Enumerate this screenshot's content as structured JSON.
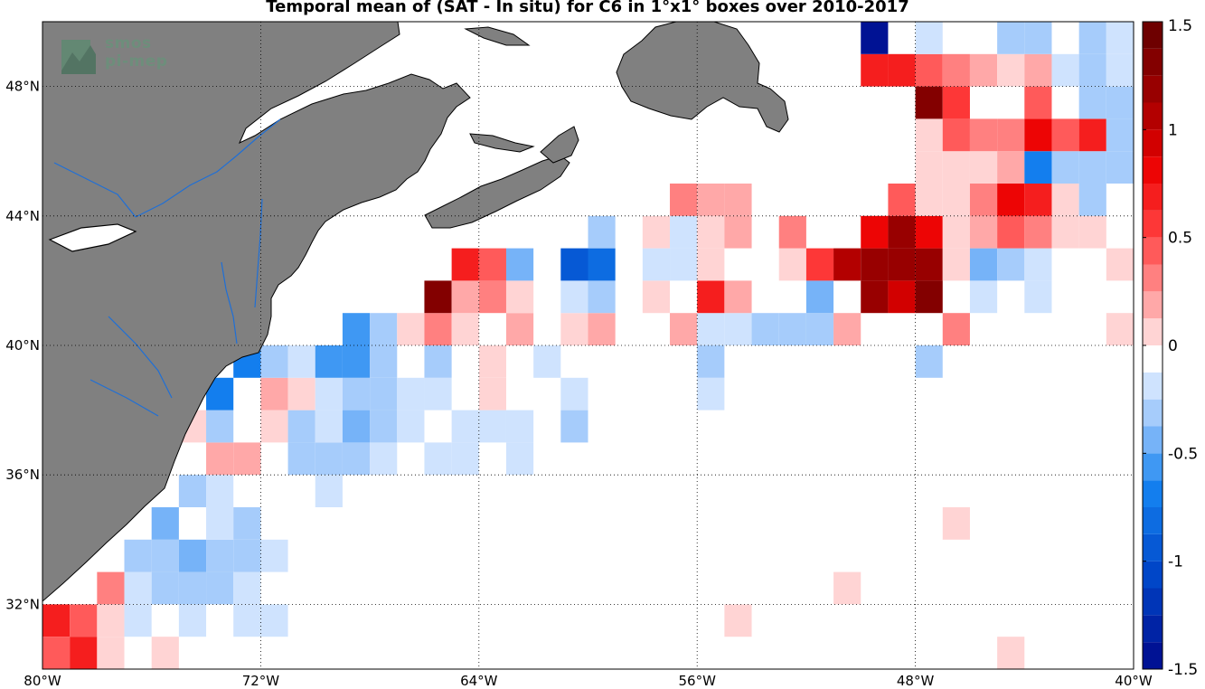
{
  "title": "Temporal mean of (SAT - In situ) for C6 in 1°x1° boxes over 2010-2017",
  "logo": {
    "line1": "smos",
    "line2": "pi-mep"
  },
  "colors": {
    "land": "#808080",
    "coast": "#000000",
    "rivers": "#1f6fd6",
    "grid": "#000000"
  },
  "map_extent": {
    "lon": [
      -80,
      -40
    ],
    "lat": [
      30,
      50
    ]
  },
  "x_ticks": [
    {
      "value": -80,
      "label": "80°W"
    },
    {
      "value": -72,
      "label": "72°W"
    },
    {
      "value": -64,
      "label": "64°W"
    },
    {
      "value": -56,
      "label": "56°W"
    },
    {
      "value": -48,
      "label": "48°W"
    },
    {
      "value": -40,
      "label": "40°W"
    }
  ],
  "y_ticks": [
    {
      "value": 48,
      "label": "48°N"
    },
    {
      "value": 44,
      "label": "44°N"
    },
    {
      "value": 40,
      "label": "40°N"
    },
    {
      "value": 36,
      "label": "36°N"
    },
    {
      "value": 32,
      "label": "32°N"
    }
  ],
  "colorbar": {
    "range": [
      -1.5,
      1.5
    ],
    "ticks": [
      {
        "value": 1.5,
        "label": "1.5"
      },
      {
        "value": 1,
        "label": "1"
      },
      {
        "value": 0.5,
        "label": "0.5"
      },
      {
        "value": 0,
        "label": "0"
      },
      {
        "value": -0.5,
        "label": "-0.5"
      },
      {
        "value": -1,
        "label": "-1"
      },
      {
        "value": -1.5,
        "label": "-1.5"
      }
    ]
  },
  "chart_data": {
    "type": "heatmap",
    "title": "Temporal mean of (SAT - In situ) for C6 in 1°x1° boxes over 2010-2017",
    "xlim": [
      -80,
      -40
    ],
    "ylim": [
      30,
      50
    ],
    "clim": [
      -1.5,
      1.5
    ],
    "cell_size_deg": 1,
    "cells": [
      {
        "lon": -80,
        "lat": 31,
        "v": 0.75
      },
      {
        "lon": -79,
        "lat": 31,
        "v": 0.55
      },
      {
        "lon": -78,
        "lat": 31,
        "v": 0.15
      },
      {
        "lon": -77,
        "lat": 31,
        "v": -0.1
      },
      {
        "lon": -75,
        "lat": 31,
        "v": -0.1
      },
      {
        "lon": -73,
        "lat": 31,
        "v": -0.1
      },
      {
        "lon": -72,
        "lat": 31,
        "v": -0.1
      },
      {
        "lon": -80,
        "lat": 30,
        "v": 0.45
      },
      {
        "lon": -79,
        "lat": 30,
        "v": 0.75
      },
      {
        "lon": -78,
        "lat": 30,
        "v": 0.1
      },
      {
        "lon": -76,
        "lat": 30,
        "v": 0.1
      },
      {
        "lon": -78,
        "lat": 32,
        "v": 0.35
      },
      {
        "lon": -77,
        "lat": 32,
        "v": -0.1
      },
      {
        "lon": -76,
        "lat": 32,
        "v": -0.2
      },
      {
        "lon": -75,
        "lat": 32,
        "v": -0.3
      },
      {
        "lon": -74,
        "lat": 32,
        "v": -0.3
      },
      {
        "lon": -73,
        "lat": 32,
        "v": -0.1
      },
      {
        "lon": -77,
        "lat": 33,
        "v": -0.2
      },
      {
        "lon": -76,
        "lat": 33,
        "v": -0.3
      },
      {
        "lon": -75,
        "lat": 33,
        "v": -0.4
      },
      {
        "lon": -74,
        "lat": 33,
        "v": -0.3
      },
      {
        "lon": -73,
        "lat": 33,
        "v": -0.3
      },
      {
        "lon": -72,
        "lat": 33,
        "v": -0.1
      },
      {
        "lon": -76,
        "lat": 34,
        "v": -0.4
      },
      {
        "lon": -74,
        "lat": 34,
        "v": -0.1
      },
      {
        "lon": -73,
        "lat": 34,
        "v": -0.25
      },
      {
        "lon": -75,
        "lat": 35,
        "v": -0.25
      },
      {
        "lon": -74,
        "lat": 35,
        "v": -0.1
      },
      {
        "lon": -70,
        "lat": 35,
        "v": -0.1
      },
      {
        "lon": -74,
        "lat": 36,
        "v": 0.3
      },
      {
        "lon": -73,
        "lat": 36,
        "v": 0.3
      },
      {
        "lon": -71,
        "lat": 36,
        "v": -0.2
      },
      {
        "lon": -70,
        "lat": 36,
        "v": -0.2
      },
      {
        "lon": -69,
        "lat": 36,
        "v": -0.2
      },
      {
        "lon": -68,
        "lat": 36,
        "v": -0.1
      },
      {
        "lon": -66,
        "lat": 36,
        "v": -0.1
      },
      {
        "lon": -65,
        "lat": 36,
        "v": -0.1
      },
      {
        "lon": -63,
        "lat": 36,
        "v": -0.1
      },
      {
        "lon": -75,
        "lat": 37,
        "v": 0.15
      },
      {
        "lon": -74,
        "lat": 37,
        "v": -0.25
      },
      {
        "lon": -72,
        "lat": 37,
        "v": 0.15
      },
      {
        "lon": -71,
        "lat": 37,
        "v": -0.2
      },
      {
        "lon": -70,
        "lat": 37,
        "v": -0.1
      },
      {
        "lon": -69,
        "lat": 37,
        "v": -0.4
      },
      {
        "lon": -68,
        "lat": 37,
        "v": -0.3
      },
      {
        "lon": -67,
        "lat": 37,
        "v": -0.1
      },
      {
        "lon": -65,
        "lat": 37,
        "v": -0.1
      },
      {
        "lon": -64,
        "lat": 37,
        "v": -0.1
      },
      {
        "lon": -63,
        "lat": 37,
        "v": -0.1
      },
      {
        "lon": -61,
        "lat": 37,
        "v": -0.3
      },
      {
        "lon": -74,
        "lat": 38,
        "v": -0.6
      },
      {
        "lon": -72,
        "lat": 38,
        "v": 0.3
      },
      {
        "lon": -71,
        "lat": 38,
        "v": 0.15
      },
      {
        "lon": -70,
        "lat": 38,
        "v": -0.1
      },
      {
        "lon": -69,
        "lat": 38,
        "v": -0.3
      },
      {
        "lon": -68,
        "lat": 38,
        "v": -0.2
      },
      {
        "lon": -67,
        "lat": 38,
        "v": -0.1
      },
      {
        "lon": -66,
        "lat": 38,
        "v": -0.1
      },
      {
        "lon": -64,
        "lat": 38,
        "v": 0.15
      },
      {
        "lon": -61,
        "lat": 38,
        "v": -0.1
      },
      {
        "lon": -56,
        "lat": 38,
        "v": -0.1
      },
      {
        "lon": -73,
        "lat": 39,
        "v": -0.6
      },
      {
        "lon": -72,
        "lat": 39,
        "v": -0.3
      },
      {
        "lon": -71,
        "lat": 39,
        "v": -0.1
      },
      {
        "lon": -70,
        "lat": 39,
        "v": -0.45
      },
      {
        "lon": -69,
        "lat": 39,
        "v": -0.45
      },
      {
        "lon": -68,
        "lat": 39,
        "v": -0.2
      },
      {
        "lon": -66,
        "lat": 39,
        "v": -0.3
      },
      {
        "lon": -64,
        "lat": 39,
        "v": 0.15
      },
      {
        "lon": -62,
        "lat": 39,
        "v": -0.1
      },
      {
        "lon": -56,
        "lat": 39,
        "v": -0.25
      },
      {
        "lon": -48,
        "lat": 39,
        "v": -0.25
      },
      {
        "lon": -69,
        "lat": 40,
        "v": -0.45
      },
      {
        "lon": -68,
        "lat": 40,
        "v": -0.2
      },
      {
        "lon": -67,
        "lat": 40,
        "v": 0.15
      },
      {
        "lon": -66,
        "lat": 40,
        "v": 0.35
      },
      {
        "lon": -65,
        "lat": 40,
        "v": 0.15
      },
      {
        "lon": -63,
        "lat": 40,
        "v": 0.25
      },
      {
        "lon": -61,
        "lat": 40,
        "v": 0.15
      },
      {
        "lon": -60,
        "lat": 40,
        "v": 0.25
      },
      {
        "lon": -57,
        "lat": 40,
        "v": 0.25
      },
      {
        "lon": -56,
        "lat": 40,
        "v": -0.1
      },
      {
        "lon": -55,
        "lat": 40,
        "v": -0.1
      },
      {
        "lon": -54,
        "lat": 40,
        "v": -0.2
      },
      {
        "lon": -53,
        "lat": 40,
        "v": -0.2
      },
      {
        "lon": -52,
        "lat": 40,
        "v": -0.2
      },
      {
        "lon": -51,
        "lat": 40,
        "v": 0.3
      },
      {
        "lon": -47,
        "lat": 40,
        "v": 0.4
      },
      {
        "lon": -41,
        "lat": 40,
        "v": 0.15
      },
      {
        "lon": -66,
        "lat": 41,
        "v": 1.4
      },
      {
        "lon": -65,
        "lat": 41,
        "v": 0.25
      },
      {
        "lon": -64,
        "lat": 41,
        "v": 0.4
      },
      {
        "lon": -63,
        "lat": 41,
        "v": 0.15
      },
      {
        "lon": -61,
        "lat": 41,
        "v": -0.1
      },
      {
        "lon": -60,
        "lat": 41,
        "v": -0.25
      },
      {
        "lon": -58,
        "lat": 41,
        "v": 0.15
      },
      {
        "lon": -56,
        "lat": 41,
        "v": 0.75
      },
      {
        "lon": -55,
        "lat": 41,
        "v": 0.25
      },
      {
        "lon": -52,
        "lat": 41,
        "v": -0.4
      },
      {
        "lon": -50,
        "lat": 41,
        "v": 1.2
      },
      {
        "lon": -49,
        "lat": 41,
        "v": 1.0
      },
      {
        "lon": -48,
        "lat": 41,
        "v": 1.4
      },
      {
        "lon": -46,
        "lat": 41,
        "v": -0.1
      },
      {
        "lon": -44,
        "lat": 41,
        "v": -0.1
      },
      {
        "lon": -65,
        "lat": 42,
        "v": 0.8
      },
      {
        "lon": -64,
        "lat": 42,
        "v": 0.5
      },
      {
        "lon": -63,
        "lat": 42,
        "v": -0.35
      },
      {
        "lon": -61,
        "lat": 42,
        "v": -0.9
      },
      {
        "lon": -60,
        "lat": 42,
        "v": -0.7
      },
      {
        "lon": -58,
        "lat": 42,
        "v": -0.1
      },
      {
        "lon": -57,
        "lat": 42,
        "v": -0.1
      },
      {
        "lon": -56,
        "lat": 42,
        "v": 0.1
      },
      {
        "lon": -53,
        "lat": 42,
        "v": 0.15
      },
      {
        "lon": -52,
        "lat": 42,
        "v": 0.6
      },
      {
        "lon": -51,
        "lat": 42,
        "v": 1.1
      },
      {
        "lon": -50,
        "lat": 42,
        "v": 1.2
      },
      {
        "lon": -49,
        "lat": 42,
        "v": 1.3
      },
      {
        "lon": -48,
        "lat": 42,
        "v": 1.3
      },
      {
        "lon": -47,
        "lat": 42,
        "v": 0.15
      },
      {
        "lon": -46,
        "lat": 42,
        "v": -0.35
      },
      {
        "lon": -45,
        "lat": 42,
        "v": -0.25
      },
      {
        "lon": -44,
        "lat": 42,
        "v": -0.1
      },
      {
        "lon": -41,
        "lat": 42,
        "v": 0.15
      },
      {
        "lon": -60,
        "lat": 43,
        "v": -0.3
      },
      {
        "lon": -58,
        "lat": 43,
        "v": 0.15
      },
      {
        "lon": -57,
        "lat": 43,
        "v": -0.1
      },
      {
        "lon": -56,
        "lat": 43,
        "v": 0.15
      },
      {
        "lon": -55,
        "lat": 43,
        "v": 0.25
      },
      {
        "lon": -53,
        "lat": 43,
        "v": 0.4
      },
      {
        "lon": -50,
        "lat": 43,
        "v": 0.9
      },
      {
        "lon": -49,
        "lat": 43,
        "v": 1.2
      },
      {
        "lon": -48,
        "lat": 43,
        "v": 0.9
      },
      {
        "lon": -47,
        "lat": 43,
        "v": 0.15
      },
      {
        "lon": -46,
        "lat": 43,
        "v": 0.3
      },
      {
        "lon": -45,
        "lat": 43,
        "v": 0.5
      },
      {
        "lon": -44,
        "lat": 43,
        "v": 0.4
      },
      {
        "lon": -43,
        "lat": 43,
        "v": 0.15
      },
      {
        "lon": -42,
        "lat": 43,
        "v": 0.15
      },
      {
        "lon": -57,
        "lat": 44,
        "v": 0.4
      },
      {
        "lon": -56,
        "lat": 44,
        "v": 0.25
      },
      {
        "lon": -55,
        "lat": 44,
        "v": 0.25
      },
      {
        "lon": -49,
        "lat": 44,
        "v": 0.5
      },
      {
        "lon": -48,
        "lat": 44,
        "v": 0.15
      },
      {
        "lon": -47,
        "lat": 44,
        "v": 0.15
      },
      {
        "lon": -46,
        "lat": 44,
        "v": 0.4
      },
      {
        "lon": -45,
        "lat": 44,
        "v": 0.9
      },
      {
        "lon": -44,
        "lat": 44,
        "v": 0.8
      },
      {
        "lon": -43,
        "lat": 44,
        "v": 0.15
      },
      {
        "lon": -42,
        "lat": 44,
        "v": -0.3
      },
      {
        "lon": -48,
        "lat": 45,
        "v": 0.15
      },
      {
        "lon": -47,
        "lat": 45,
        "v": 0.15
      },
      {
        "lon": -46,
        "lat": 45,
        "v": 0.15
      },
      {
        "lon": -45,
        "lat": 45,
        "v": 0.25
      },
      {
        "lon": -44,
        "lat": 45,
        "v": -0.6
      },
      {
        "lon": -43,
        "lat": 45,
        "v": -0.25
      },
      {
        "lon": -42,
        "lat": 45,
        "v": -0.3
      },
      {
        "lon": -41,
        "lat": 45,
        "v": -0.25
      },
      {
        "lon": -48,
        "lat": 46,
        "v": 0.15
      },
      {
        "lon": -47,
        "lat": 46,
        "v": 0.45
      },
      {
        "lon": -46,
        "lat": 46,
        "v": 0.35
      },
      {
        "lon": -45,
        "lat": 46,
        "v": 0.35
      },
      {
        "lon": -44,
        "lat": 46,
        "v": 0.85
      },
      {
        "lon": -43,
        "lat": 46,
        "v": 0.55
      },
      {
        "lon": -42,
        "lat": 46,
        "v": 0.7
      },
      {
        "lon": -41,
        "lat": 46,
        "v": -0.2
      },
      {
        "lon": -48,
        "lat": 47,
        "v": 1.4
      },
      {
        "lon": -47,
        "lat": 47,
        "v": 0.6
      },
      {
        "lon": -44,
        "lat": 47,
        "v": 0.55
      },
      {
        "lon": -42,
        "lat": 47,
        "v": -0.25
      },
      {
        "lon": -41,
        "lat": 47,
        "v": -0.25
      },
      {
        "lon": -50,
        "lat": 48,
        "v": 0.8
      },
      {
        "lon": -49,
        "lat": 48,
        "v": 0.8
      },
      {
        "lon": -48,
        "lat": 48,
        "v": 0.55
      },
      {
        "lon": -47,
        "lat": 48,
        "v": 0.4
      },
      {
        "lon": -46,
        "lat": 48,
        "v": 0.3
      },
      {
        "lon": -45,
        "lat": 48,
        "v": 0.15
      },
      {
        "lon": -44,
        "lat": 48,
        "v": 0.3
      },
      {
        "lon": -43,
        "lat": 48,
        "v": -0.1
      },
      {
        "lon": -42,
        "lat": 48,
        "v": -0.3
      },
      {
        "lon": -41,
        "lat": 48,
        "v": -0.1
      },
      {
        "lon": -50,
        "lat": 49,
        "v": -1.4
      },
      {
        "lon": -48,
        "lat": 49,
        "v": -0.1
      },
      {
        "lon": -45,
        "lat": 49,
        "v": -0.3
      },
      {
        "lon": -44,
        "lat": 49,
        "v": -0.3
      },
      {
        "lon": -42,
        "lat": 49,
        "v": -0.25
      },
      {
        "lon": -41,
        "lat": 49,
        "v": -0.1
      },
      {
        "lon": -47,
        "lat": 34,
        "v": 0.15
      },
      {
        "lon": -51,
        "lat": 32,
        "v": 0.15
      },
      {
        "lon": -55,
        "lat": 31,
        "v": 0.15
      },
      {
        "lon": -45,
        "lat": 30,
        "v": 0.15
      }
    ]
  }
}
